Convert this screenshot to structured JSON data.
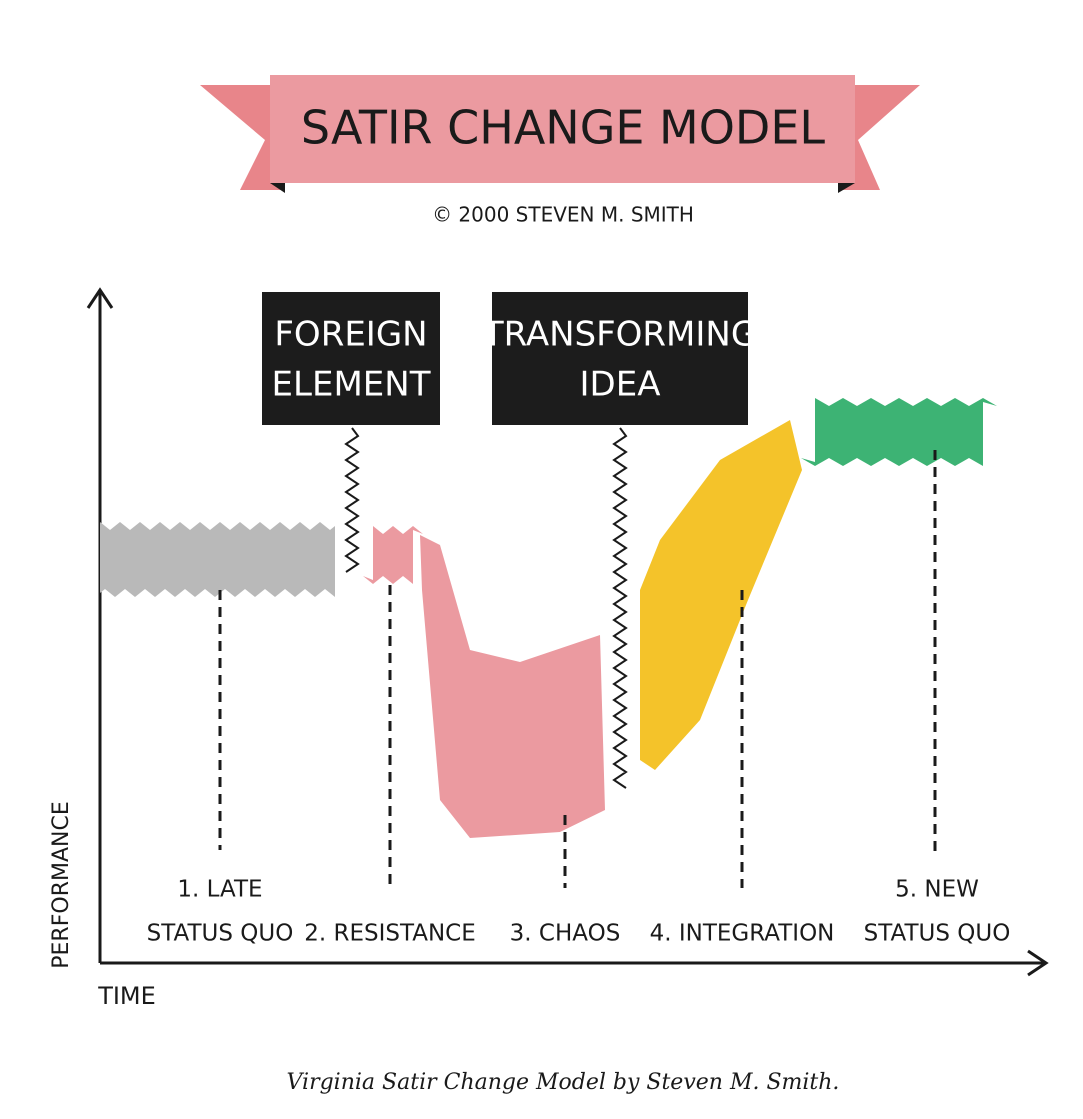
{
  "header": {
    "title": "SATIR CHANGE MODEL",
    "subtitle": "© 2000 STEVEN M. SMITH"
  },
  "events": [
    {
      "lines": [
        "FOREIGN",
        "ELEMENT"
      ]
    },
    {
      "lines": [
        "TRANSFORMING",
        "IDEA"
      ]
    }
  ],
  "stages": [
    {
      "lines": [
        "1. LATE",
        "STATUS QUO"
      ]
    },
    {
      "lines": [
        "2. RESISTANCE"
      ]
    },
    {
      "lines": [
        "3. CHAOS"
      ]
    },
    {
      "lines": [
        "4. INTEGRATION"
      ]
    },
    {
      "lines": [
        "5. NEW",
        "STATUS QUO"
      ]
    }
  ],
  "axes": {
    "y": "PERFORMANCE",
    "x": "TIME"
  },
  "caption": "Virginia Satir Change Model by Steven M. Smith."
}
